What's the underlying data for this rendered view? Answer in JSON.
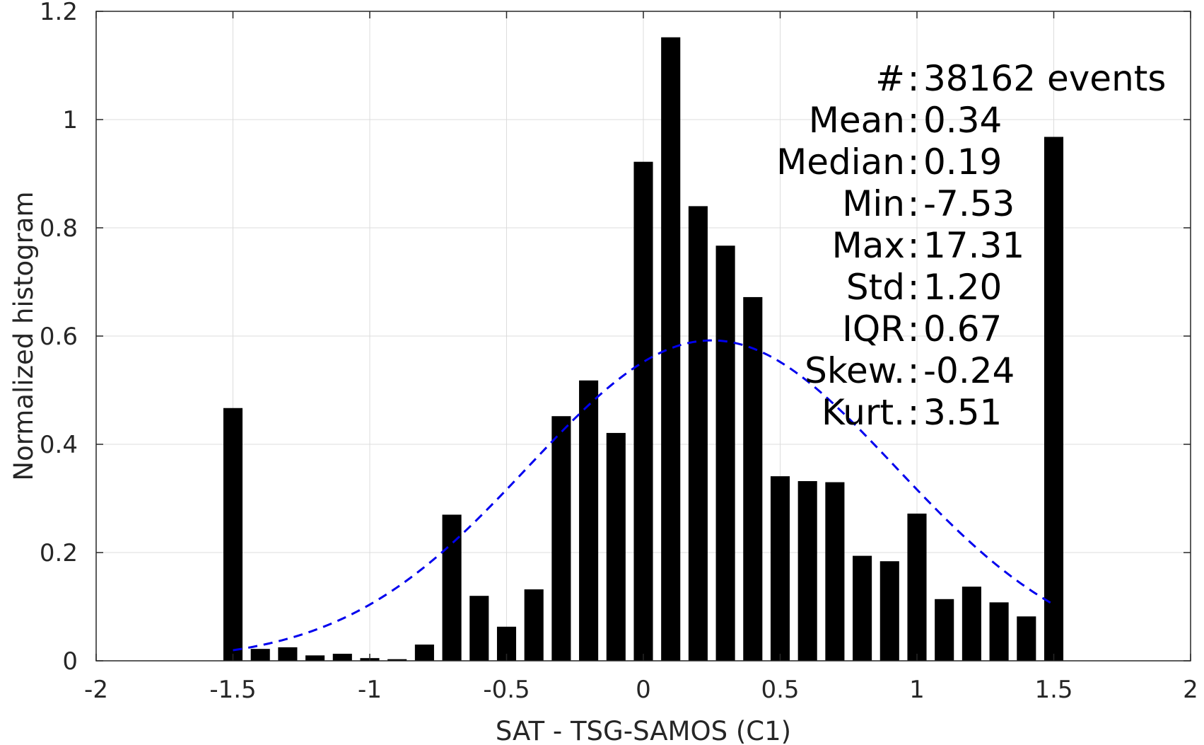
{
  "chart_data": {
    "type": "bar",
    "xlabel": "SAT - TSG-SAMOS (C1)",
    "ylabel": "Normalized histogram",
    "xlim": [
      -2,
      2
    ],
    "ylim": [
      0,
      1.2
    ],
    "x_ticks": [
      -2,
      -1.5,
      -1,
      -0.5,
      0,
      0.5,
      1,
      1.5,
      2
    ],
    "x_tick_labels": [
      "-2",
      "-1.5",
      "-1",
      "-0.5",
      "0",
      "0.5",
      "1",
      "1.5",
      "2"
    ],
    "y_ticks": [
      0,
      0.2,
      0.4,
      0.6,
      0.8,
      1,
      1.2
    ],
    "y_tick_labels": [
      "0",
      "0.2",
      "0.4",
      "0.6",
      "0.8",
      "1",
      "1.2"
    ],
    "grid": true,
    "bar_color": "#000000",
    "bar_width": 0.07,
    "bars": {
      "x": [
        -1.5,
        -1.4,
        -1.3,
        -1.2,
        -1.1,
        -1.0,
        -0.9,
        -0.8,
        -0.7,
        -0.6,
        -0.5,
        -0.4,
        -0.3,
        -0.2,
        -0.1,
        0.0,
        0.1,
        0.2,
        0.3,
        0.4,
        0.5,
        0.6,
        0.7,
        0.8,
        0.9,
        1.0,
        1.1,
        1.2,
        1.3,
        1.4,
        1.5
      ],
      "values": [
        0.467,
        0.022,
        0.025,
        0.01,
        0.013,
        0.005,
        0.003,
        0.03,
        0.27,
        0.12,
        0.063,
        0.132,
        0.452,
        0.518,
        0.421,
        0.922,
        1.152,
        0.84,
        0.767,
        0.672,
        0.341,
        0.332,
        0.33,
        0.194,
        0.184,
        0.272,
        0.114,
        0.137,
        0.108,
        0.082,
        0.968
      ]
    },
    "fit_curve": {
      "style": "dashed",
      "color": "#0000ee",
      "mean": 0.25,
      "std": 0.67,
      "peak": 0.592,
      "x_range": [
        -1.5,
        1.5
      ]
    },
    "stats": [
      {
        "label": "#  ",
        "value": "38162 events"
      },
      {
        "label": "Mean",
        "value": "0.34"
      },
      {
        "label": "Median",
        "value": "0.19"
      },
      {
        "label": "Min",
        "value": "-7.53"
      },
      {
        "label": "Max",
        "value": "17.31"
      },
      {
        "label": "Std",
        "value": "1.20"
      },
      {
        "label": "IQR",
        "value": "0.67"
      },
      {
        "label": "Skew.",
        "value": "-0.24"
      },
      {
        "label": "Kurt.",
        "value": "3.51"
      }
    ]
  }
}
